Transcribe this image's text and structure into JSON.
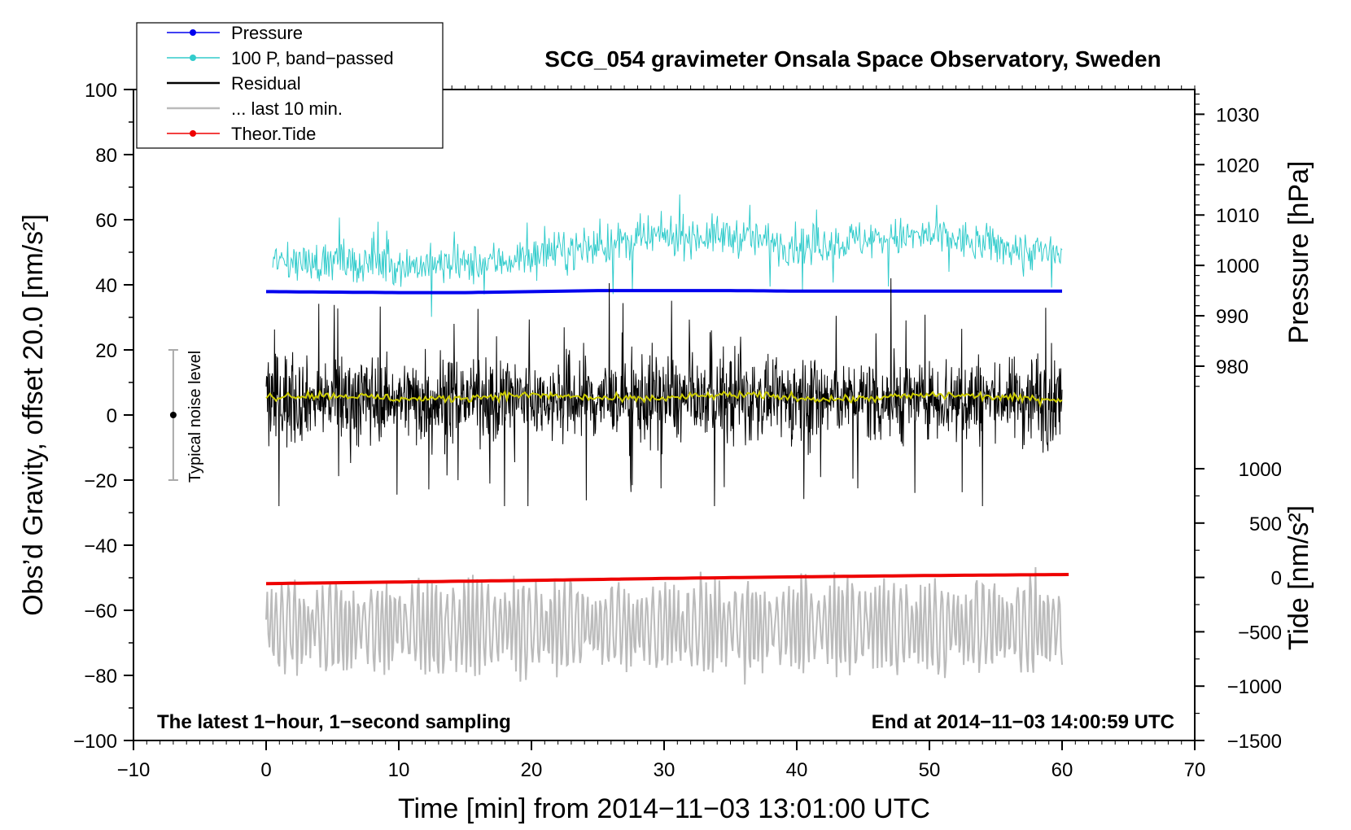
{
  "chart_data": {
    "type": "line",
    "title": "SCG_054 gravimeter Onsala Space Observatory, Sweden",
    "xlabel": "Time [min] from 2014−11−03 13:01:00 UTC",
    "ylabel_main": "Obs’d Gravity, offset 20.0 [nm/s²]",
    "ylabel_pressure": "Pressure [hPa]",
    "ylabel_tide": "Tide [nm/s²]",
    "xlim": [
      -10,
      70
    ],
    "ylim": [
      -100,
      100
    ],
    "x_ticks": [
      -10,
      0,
      10,
      20,
      30,
      40,
      50,
      60,
      70
    ],
    "x_tick_labels": [
      "−10",
      "0",
      "10",
      "20",
      "30",
      "40",
      "50",
      "60",
      "70"
    ],
    "y_ticks": [
      -100,
      -80,
      -60,
      -40,
      -20,
      0,
      20,
      40,
      60,
      80,
      100
    ],
    "y_tick_labels": [
      "−100",
      "−80",
      "−60",
      "−40",
      "−20",
      "0",
      "20",
      "40",
      "60",
      "80",
      "100"
    ],
    "pressure_axis": {
      "ticks": [
        980,
        990,
        1000,
        1010,
        1020,
        1030
      ],
      "tick_labels": [
        "980",
        "990",
        "1000",
        "1010",
        "1020",
        "1030"
      ],
      "mapping_note": "1030 hPa at 92.4, 980 hPa at 15.0 on gravity scale"
    },
    "tide_axis": {
      "ticks": [
        -1500,
        -1000,
        -500,
        0,
        500,
        1000
      ],
      "tick_labels": [
        "−1500",
        "−1000",
        "−500",
        "0",
        "500",
        "1000"
      ],
      "range": [
        -1500,
        1000
      ]
    },
    "annotations": {
      "left_note": "The latest 1−hour, 1−second sampling",
      "right_note": "End at 2014−11−03 14:00:59 UTC",
      "noise_label": "Typical noise level",
      "noise_bar": {
        "x": -7,
        "center": 0,
        "min": -20,
        "max": 20
      }
    },
    "legend": {
      "position": "top-left",
      "entries": [
        {
          "label": "Pressure",
          "color": "#0000ee",
          "marker": true
        },
        {
          "label": "100 P, band−passed",
          "color": "#33cccc",
          "marker": true
        },
        {
          "label": "Residual",
          "color": "#000000",
          "marker": false
        },
        {
          "label": "... last 10 min.",
          "color": "#bbbbbb",
          "marker": false
        },
        {
          "label": "Theor.Tide",
          "color": "#ee0000",
          "marker": true
        }
      ]
    },
    "series": [
      {
        "name": "Pressure",
        "color": "#0000ee",
        "x_range": [
          0,
          60
        ],
        "values_hpa": [
          994.8,
          994.7,
          994.6,
          994.6,
          994.8,
          995.0,
          995.0,
          995.0,
          994.9,
          994.9,
          994.9,
          994.9,
          994.9
        ],
        "width": 4
      },
      {
        "name": "100 P, band-passed",
        "color": "#33cccc",
        "x_range": [
          0.5,
          60
        ],
        "baseline": [
          47,
          47,
          46,
          46,
          49,
          52,
          55,
          55,
          52,
          54,
          55,
          52,
          49
        ],
        "noise_amplitude": 5,
        "width": 1
      },
      {
        "name": "Residual",
        "color": "#000000",
        "x_range": [
          0,
          60
        ],
        "baseline": 5,
        "noise_amplitude": 14,
        "width": 1
      },
      {
        "name": "Residual smoothed",
        "color": "#cccc00",
        "x_range": [
          0,
          60
        ],
        "baseline": 5.5,
        "noise_amplitude": 1.2,
        "width": 2
      },
      {
        "name": "... last 10 min.",
        "color": "#bbbbbb",
        "x_range": [
          0,
          60
        ],
        "baseline": -65,
        "oscillation_amplitude": 15,
        "width": 2
      },
      {
        "name": "Theor.Tide",
        "color": "#ee0000",
        "x_range": [
          0,
          60.5
        ],
        "values": [
          -51.8,
          -51.3,
          -50.8,
          -50.2,
          -49.7,
          -49.3,
          -49.0
        ],
        "width": 4
      }
    ]
  },
  "colors": {
    "axis": "#000000",
    "noise_bar": "#aaaaaa"
  }
}
